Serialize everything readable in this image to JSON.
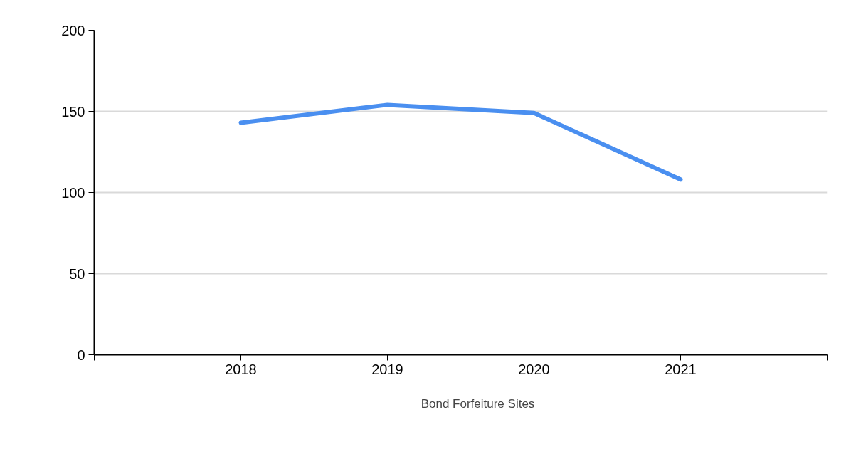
{
  "chart_data": {
    "type": "line",
    "x": [
      2018,
      2019,
      2020,
      2021
    ],
    "series": [
      {
        "name": "Bond Forfeiture Sites",
        "color": "#4a8ff0",
        "values": [
          143,
          154,
          149,
          108
        ]
      }
    ],
    "xlim": [
      2017,
      2022
    ],
    "xticks": [
      {
        "value": 2017,
        "label": null
      },
      2018,
      2019,
      2020,
      2021,
      {
        "value": 2022,
        "label": null
      }
    ],
    "ylim": [
      0,
      200
    ],
    "yticks": [
      0,
      50,
      100,
      150,
      200
    ],
    "grid": "y",
    "legend": "bottom",
    "marker": "none",
    "line_style": "solid"
  }
}
